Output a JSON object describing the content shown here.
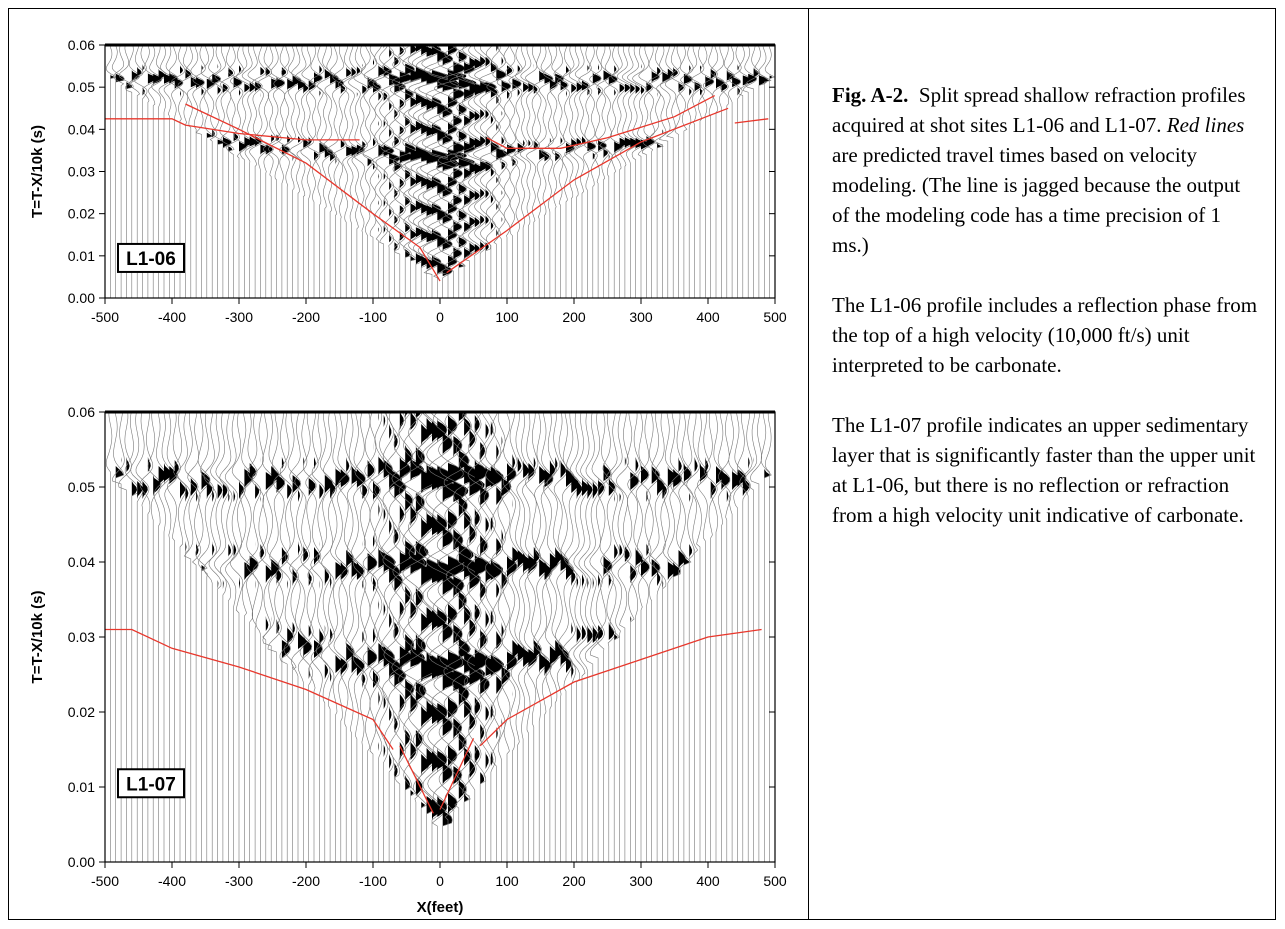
{
  "figure": {
    "panels": [
      {
        "label": "L1-06",
        "ylabel": "T=T-X/10k (s)",
        "xlim": [
          -500,
          500
        ],
        "ylim": [
          0,
          0.06
        ],
        "xticks": [
          -500,
          -400,
          -300,
          -200,
          -100,
          0,
          100,
          200,
          300,
          400,
          500
        ],
        "yticks": [
          {
            "value": 0,
            "label": "0.00"
          },
          {
            "value": 0.01,
            "label": "0.01"
          },
          {
            "value": 0.02,
            "label": "0.02"
          },
          {
            "value": 0.03,
            "label": "0.03"
          },
          {
            "value": 0.04,
            "label": "0.04"
          },
          {
            "value": 0.05,
            "label": "0.05"
          },
          {
            "value": 0.06,
            "label": "0.06"
          }
        ],
        "line_color": "#e8372c",
        "lines": [
          {
            "x": [
              -500,
              -400,
              -380,
              -300,
              -200,
              -120
            ],
            "y": [
              0.0425,
              0.0425,
              0.041,
              0.039,
              0.0375,
              0.0375
            ]
          },
          {
            "x": [
              -380,
              -300,
              -200,
              -100,
              -30,
              0
            ],
            "y": [
              0.046,
              0.04,
              0.032,
              0.02,
              0.012,
              0.004
            ]
          },
          {
            "x": [
              10,
              100,
              200,
              300,
              430
            ],
            "y": [
              0.006,
              0.016,
              0.028,
              0.037,
              0.045
            ]
          },
          {
            "x": [
              70,
              100,
              180,
              250,
              350,
              410
            ],
            "y": [
              0.038,
              0.0355,
              0.0355,
              0.038,
              0.043,
              0.048
            ]
          },
          {
            "x": [
              440,
              490
            ],
            "y": [
              0.0415,
              0.0425
            ]
          }
        ]
      },
      {
        "label": "L1-07",
        "ylabel": "T=T-X/10k (s)",
        "xlabel": "X(feet)",
        "xlim": [
          -500,
          500
        ],
        "ylim": [
          0,
          0.06
        ],
        "xticks": [
          -500,
          -400,
          -300,
          -200,
          -100,
          0,
          100,
          200,
          300,
          400,
          500
        ],
        "yticks": [
          {
            "value": 0,
            "label": "0.00"
          },
          {
            "value": 0.01,
            "label": "0.01"
          },
          {
            "value": 0.02,
            "label": "0.02"
          },
          {
            "value": 0.03,
            "label": "0.03"
          },
          {
            "value": 0.04,
            "label": "0.04"
          },
          {
            "value": 0.05,
            "label": "0.05"
          },
          {
            "value": 0.06,
            "label": "0.06"
          }
        ],
        "line_color": "#e8372c",
        "lines": [
          {
            "x": [
              -500,
              -460,
              -400,
              -300,
              -200,
              -100,
              -70
            ],
            "y": [
              0.031,
              0.031,
              0.0285,
              0.026,
              0.023,
              0.019,
              0.015
            ]
          },
          {
            "x": [
              -60,
              -10
            ],
            "y": [
              0.0155,
              0.0065
            ]
          },
          {
            "x": [
              0,
              50
            ],
            "y": [
              0.007,
              0.0165
            ]
          },
          {
            "x": [
              60,
              100,
              200,
              300,
              400,
              480
            ],
            "y": [
              0.0155,
              0.019,
              0.024,
              0.027,
              0.03,
              0.031
            ]
          }
        ]
      }
    ],
    "caption": {
      "label": "Fig. A-2.",
      "text1": "Split spread shallow refraction profiles acquired at shot sites L1-06 and L1-07.",
      "emphasis": "Red lines",
      "text2": "are predicted travel times based on velocity modeling. (The line is jagged because the output of the modeling code has a time precision of 1 ms.)",
      "paragraphs": [
        "The L1-06 profile includes a reflection phase from the top of a high velocity (10,000 ft/s) unit interpreted to be carbonate.",
        "The L1-07 profile indicates an upper sedimentary layer that is significantly faster than the upper unit at L1-06, but there is no reflection or refraction from a high velocity unit indicative of carbonate."
      ]
    }
  }
}
